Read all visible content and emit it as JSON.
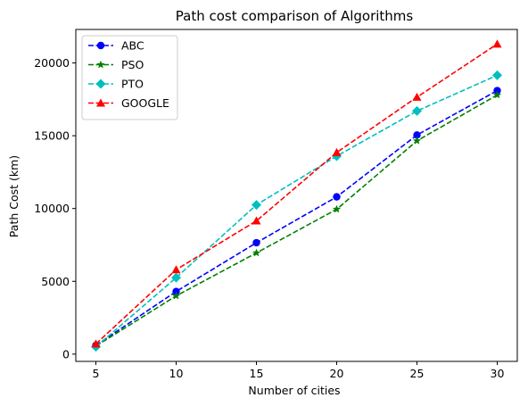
{
  "chart_data": {
    "type": "line",
    "title": "Path cost comparison of Algorithms",
    "xlabel": "Number of cities",
    "ylabel": "Path Cost (km)",
    "x": [
      5,
      10,
      15,
      20,
      25,
      30
    ],
    "xticks": [
      5,
      10,
      15,
      20,
      25,
      30
    ],
    "yticks": [
      0,
      5000,
      10000,
      15000,
      20000
    ],
    "xlim": [
      3.75,
      31.25
    ],
    "ylim": [
      -500,
      22300
    ],
    "grid": false,
    "legend_position": "upper-left",
    "series": [
      {
        "name": "ABC",
        "color": "#0000ff",
        "marker": "circle",
        "line_style": "dashed",
        "values": [
          600,
          4300,
          7650,
          10800,
          15050,
          18100
        ]
      },
      {
        "name": "PSO",
        "color": "#008000",
        "marker": "star",
        "line_style": "dashed",
        "values": [
          550,
          4000,
          6950,
          9950,
          14650,
          17800
        ]
      },
      {
        "name": "PTO",
        "color": "#00bfbf",
        "marker": "diamond",
        "line_style": "dashed",
        "values": [
          500,
          5250,
          10250,
          13600,
          16700,
          19150
        ]
      },
      {
        "name": "GOOGLE",
        "color": "#ff0000",
        "marker": "triangle",
        "line_style": "dashed",
        "values": [
          700,
          5800,
          9150,
          13850,
          17650,
          21300
        ]
      }
    ]
  }
}
